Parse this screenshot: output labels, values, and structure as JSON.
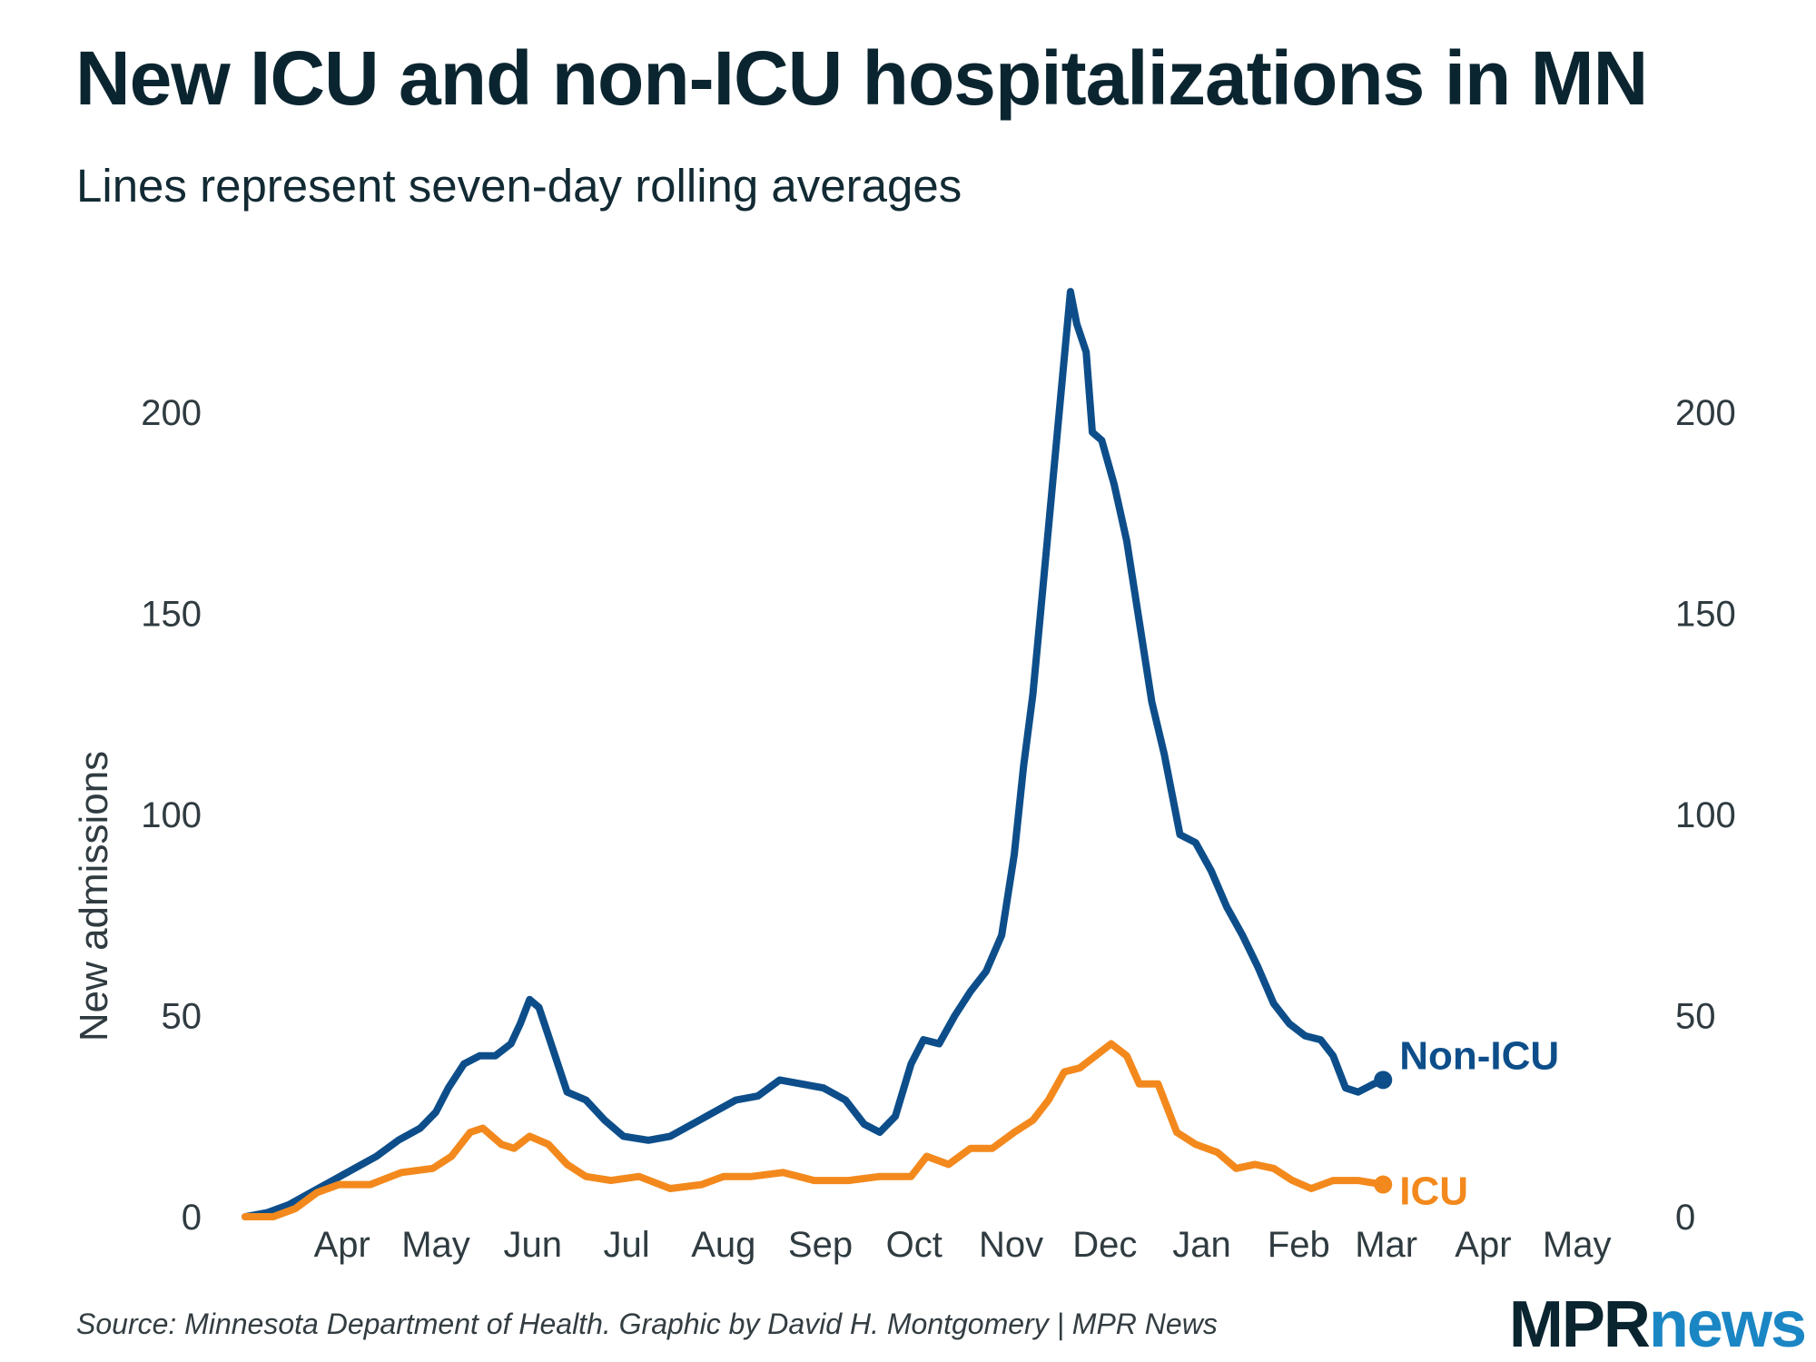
{
  "header": {
    "title": "New ICU and non-ICU hospitalizations in MN",
    "subtitle": "Lines represent seven-day rolling averages"
  },
  "footer": {
    "source": "Source: Minnesota Department of Health. Graphic by David H. Montgomery | MPR News",
    "logo_mpr": "MPR",
    "logo_news": "news"
  },
  "colors": {
    "non_icu": "#0d4e8a",
    "icu": "#f3891d",
    "axis_text": "#2f3b40",
    "logo_blue": "#1b86c4"
  },
  "chart_data": {
    "type": "line",
    "title": "New ICU and non-ICU hospitalizations in MN",
    "subtitle": "Lines represent seven-day rolling averages",
    "ylabel": "New admissions",
    "xlabel": "",
    "ylim": [
      0,
      200
    ],
    "yticks": [
      0,
      50,
      100,
      150,
      200
    ],
    "y_axis_sides": "left and right",
    "x_domain": [
      "2020-03-01",
      "2021-05-31"
    ],
    "x_ticks": [
      {
        "label": "Apr",
        "date": "2020-04-01"
      },
      {
        "label": "May",
        "date": "2020-05-01"
      },
      {
        "label": "Jun",
        "date": "2020-06-01"
      },
      {
        "label": "Jul",
        "date": "2020-07-01"
      },
      {
        "label": "Aug",
        "date": "2020-08-01"
      },
      {
        "label": "Sep",
        "date": "2020-09-01"
      },
      {
        "label": "Oct",
        "date": "2020-10-01"
      },
      {
        "label": "Nov",
        "date": "2020-11-01"
      },
      {
        "label": "Dec",
        "date": "2020-12-01"
      },
      {
        "label": "Jan",
        "date": "2021-01-01"
      },
      {
        "label": "Feb",
        "date": "2021-02-01"
      },
      {
        "label": "Mar",
        "date": "2021-03-01"
      },
      {
        "label": "Apr",
        "date": "2021-04-01"
      },
      {
        "label": "May",
        "date": "2021-05-01"
      }
    ],
    "grid": false,
    "legend": "direct labels at line ends (right)",
    "series": [
      {
        "name": "Non-ICU",
        "points": [
          [
            "2020-03-01",
            0
          ],
          [
            "2020-03-08",
            1
          ],
          [
            "2020-03-15",
            3
          ],
          [
            "2020-03-22",
            6
          ],
          [
            "2020-03-29",
            9
          ],
          [
            "2020-04-05",
            12
          ],
          [
            "2020-04-12",
            15
          ],
          [
            "2020-04-19",
            19
          ],
          [
            "2020-04-26",
            22
          ],
          [
            "2020-05-01",
            26
          ],
          [
            "2020-05-05",
            32
          ],
          [
            "2020-05-10",
            38
          ],
          [
            "2020-05-15",
            40
          ],
          [
            "2020-05-20",
            40
          ],
          [
            "2020-05-25",
            43
          ],
          [
            "2020-05-28",
            48
          ],
          [
            "2020-05-31",
            54
          ],
          [
            "2020-06-03",
            52
          ],
          [
            "2020-06-06",
            45
          ],
          [
            "2020-06-09",
            38
          ],
          [
            "2020-06-12",
            31
          ],
          [
            "2020-06-18",
            29
          ],
          [
            "2020-06-24",
            24
          ],
          [
            "2020-06-30",
            20
          ],
          [
            "2020-07-08",
            19
          ],
          [
            "2020-07-15",
            20
          ],
          [
            "2020-07-22",
            23
          ],
          [
            "2020-07-29",
            26
          ],
          [
            "2020-08-05",
            29
          ],
          [
            "2020-08-12",
            30
          ],
          [
            "2020-08-19",
            34
          ],
          [
            "2020-08-26",
            33
          ],
          [
            "2020-09-02",
            32
          ],
          [
            "2020-09-09",
            29
          ],
          [
            "2020-09-15",
            23
          ],
          [
            "2020-09-20",
            21
          ],
          [
            "2020-09-25",
            25
          ],
          [
            "2020-09-30",
            38
          ],
          [
            "2020-10-04",
            44
          ],
          [
            "2020-10-09",
            43
          ],
          [
            "2020-10-14",
            50
          ],
          [
            "2020-10-19",
            56
          ],
          [
            "2020-10-24",
            61
          ],
          [
            "2020-10-29",
            70
          ],
          [
            "2020-11-02",
            90
          ],
          [
            "2020-11-05",
            112
          ],
          [
            "2020-11-08",
            130
          ],
          [
            "2020-11-11",
            155
          ],
          [
            "2020-11-14",
            180
          ],
          [
            "2020-11-17",
            205
          ],
          [
            "2020-11-20",
            230
          ],
          [
            "2020-11-22",
            222
          ],
          [
            "2020-11-25",
            215
          ],
          [
            "2020-11-27",
            195
          ],
          [
            "2020-11-30",
            193
          ],
          [
            "2020-12-04",
            182
          ],
          [
            "2020-12-08",
            168
          ],
          [
            "2020-12-12",
            148
          ],
          [
            "2020-12-16",
            128
          ],
          [
            "2020-12-20",
            115
          ],
          [
            "2020-12-25",
            95
          ],
          [
            "2020-12-30",
            93
          ],
          [
            "2021-01-04",
            86
          ],
          [
            "2021-01-09",
            77
          ],
          [
            "2021-01-14",
            70
          ],
          [
            "2021-01-19",
            62
          ],
          [
            "2021-01-24",
            53
          ],
          [
            "2021-01-29",
            48
          ],
          [
            "2021-02-03",
            45
          ],
          [
            "2021-02-08",
            44
          ],
          [
            "2021-02-12",
            40
          ],
          [
            "2021-02-16",
            32
          ],
          [
            "2021-02-20",
            31
          ],
          [
            "2021-02-25",
            33
          ],
          [
            "2021-02-28",
            34
          ]
        ]
      },
      {
        "name": "ICU",
        "points": [
          [
            "2020-03-01",
            0
          ],
          [
            "2020-03-10",
            0
          ],
          [
            "2020-03-17",
            2
          ],
          [
            "2020-03-24",
            6
          ],
          [
            "2020-03-31",
            8
          ],
          [
            "2020-04-10",
            8
          ],
          [
            "2020-04-20",
            11
          ],
          [
            "2020-04-30",
            12
          ],
          [
            "2020-05-06",
            15
          ],
          [
            "2020-05-12",
            21
          ],
          [
            "2020-05-16",
            22
          ],
          [
            "2020-05-22",
            18
          ],
          [
            "2020-05-26",
            17
          ],
          [
            "2020-05-31",
            20
          ],
          [
            "2020-06-06",
            18
          ],
          [
            "2020-06-12",
            13
          ],
          [
            "2020-06-18",
            10
          ],
          [
            "2020-06-26",
            9
          ],
          [
            "2020-07-05",
            10
          ],
          [
            "2020-07-15",
            7
          ],
          [
            "2020-07-25",
            8
          ],
          [
            "2020-08-01",
            10
          ],
          [
            "2020-08-10",
            10
          ],
          [
            "2020-08-20",
            11
          ],
          [
            "2020-08-30",
            9
          ],
          [
            "2020-09-10",
            9
          ],
          [
            "2020-09-20",
            10
          ],
          [
            "2020-09-30",
            10
          ],
          [
            "2020-10-05",
            15
          ],
          [
            "2020-10-12",
            13
          ],
          [
            "2020-10-19",
            17
          ],
          [
            "2020-10-26",
            17
          ],
          [
            "2020-11-02",
            21
          ],
          [
            "2020-11-08",
            24
          ],
          [
            "2020-11-13",
            29
          ],
          [
            "2020-11-18",
            36
          ],
          [
            "2020-11-23",
            37
          ],
          [
            "2020-11-28",
            40
          ],
          [
            "2020-12-03",
            43
          ],
          [
            "2020-12-08",
            40
          ],
          [
            "2020-12-12",
            33
          ],
          [
            "2020-12-18",
            33
          ],
          [
            "2020-12-24",
            21
          ],
          [
            "2020-12-30",
            18
          ],
          [
            "2021-01-06",
            16
          ],
          [
            "2021-01-12",
            12
          ],
          [
            "2021-01-18",
            13
          ],
          [
            "2021-01-24",
            12
          ],
          [
            "2021-01-30",
            9
          ],
          [
            "2021-02-05",
            7
          ],
          [
            "2021-02-12",
            9
          ],
          [
            "2021-02-20",
            9
          ],
          [
            "2021-02-28",
            8
          ]
        ]
      }
    ]
  }
}
